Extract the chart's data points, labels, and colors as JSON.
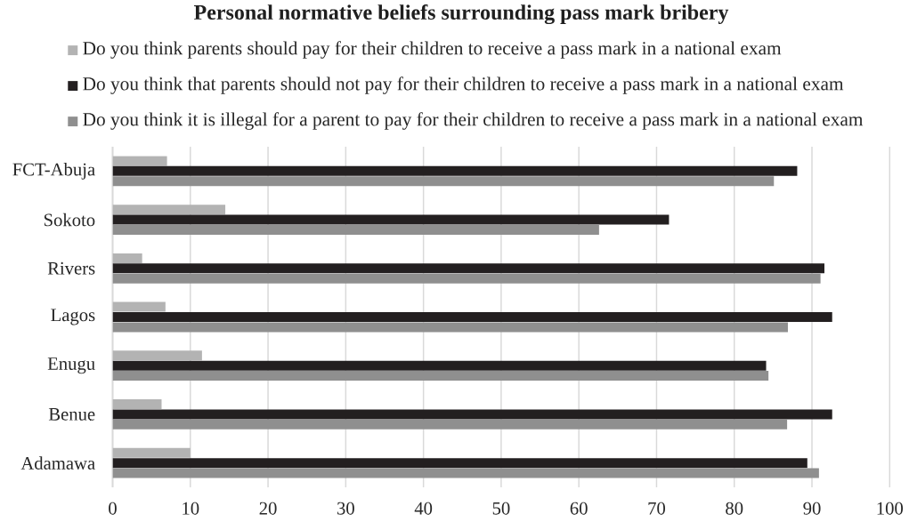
{
  "chart_data": {
    "type": "bar",
    "orientation": "horizontal",
    "title": "Personal normative beliefs surrounding pass mark bribery",
    "categories": [
      "FCT-Abuja",
      "Sokoto",
      "Rivers",
      "Lagos",
      "Enugu",
      "Benue",
      "Adamawa"
    ],
    "series": [
      {
        "name": "Do you think parents should pay for their children to receive a pass mark in a national exam",
        "color": "#b3b3b3",
        "values": [
          7.0,
          14.5,
          3.8,
          6.8,
          11.5,
          6.3,
          10.0
        ]
      },
      {
        "name": "Do you think that parents should not pay for their children to receive a pass mark in a national exam",
        "color": "#231f20",
        "values": [
          88.1,
          71.6,
          91.6,
          92.6,
          84.1,
          92.6,
          89.4
        ]
      },
      {
        "name": "Do you think it is illegal for a parent to pay for their children to receive a pass mark in a national exam",
        "color": "#8f8f8f",
        "values": [
          85.1,
          62.6,
          91.1,
          86.9,
          84.4,
          86.8,
          90.9
        ]
      }
    ],
    "xlim": [
      0,
      100
    ],
    "xticks": [
      0,
      10,
      20,
      30,
      40,
      50,
      60,
      70,
      80,
      90,
      100
    ],
    "grid": "x",
    "legend": "top"
  }
}
